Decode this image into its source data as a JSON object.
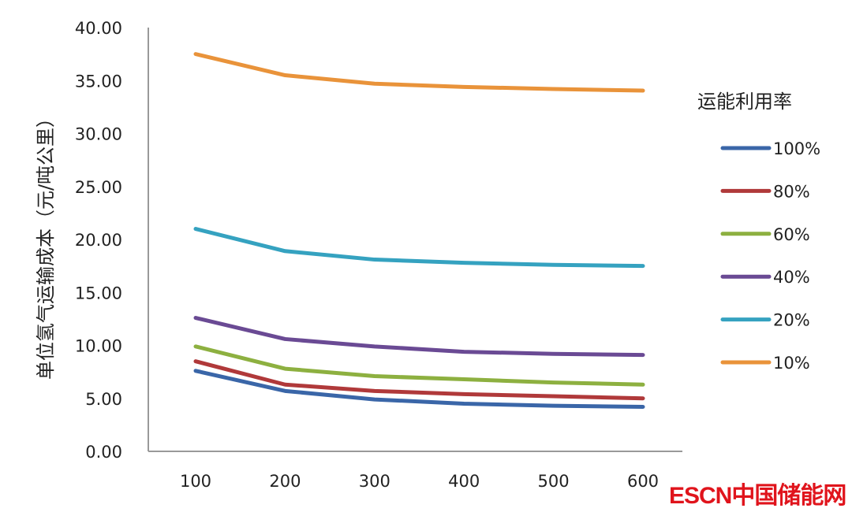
{
  "chart_data": {
    "type": "line",
    "title": "",
    "xlabel": "",
    "ylabel": "单位氢气运输成本（元/吨公里）",
    "x": [
      100,
      200,
      300,
      400,
      500,
      600
    ],
    "x_tick_labels": [
      "100",
      "200",
      "300",
      "400",
      "500",
      "600"
    ],
    "ylim": [
      0,
      40
    ],
    "y_tick_labels": [
      "0.00",
      "5.00",
      "10.00",
      "15.00",
      "20.00",
      "25.00",
      "30.00",
      "35.00",
      "40.00"
    ],
    "grid": false,
    "legend": {
      "title": "运能利用率",
      "placement": "right"
    },
    "series": [
      {
        "name": "100%",
        "color": "#3a66a8",
        "values": [
          7.6,
          5.7,
          4.9,
          4.5,
          4.3,
          4.2
        ]
      },
      {
        "name": "80%",
        "color": "#b0393a",
        "values": [
          8.5,
          6.3,
          5.7,
          5.4,
          5.2,
          5.0
        ]
      },
      {
        "name": "60%",
        "color": "#8db040",
        "values": [
          9.9,
          7.8,
          7.1,
          6.8,
          6.5,
          6.3
        ]
      },
      {
        "name": "40%",
        "color": "#6a4a94",
        "values": [
          12.6,
          10.6,
          9.9,
          9.4,
          9.2,
          9.1
        ]
      },
      {
        "name": "20%",
        "color": "#35a2c0",
        "values": [
          21.0,
          18.9,
          18.1,
          17.8,
          17.6,
          17.5
        ]
      },
      {
        "name": "10%",
        "color": "#e9933a",
        "values": [
          37.5,
          35.5,
          34.7,
          34.4,
          34.2,
          34.05
        ]
      }
    ]
  },
  "watermark": {
    "logo": "ESCN中国储能网"
  }
}
